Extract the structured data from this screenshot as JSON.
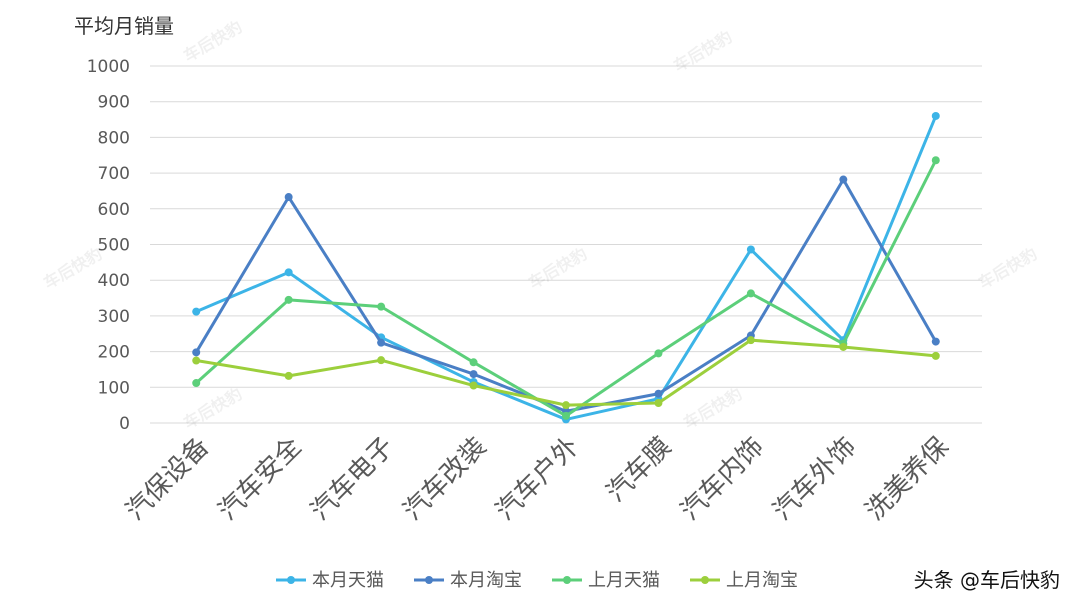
{
  "chart_data": {
    "type": "line",
    "ylabel": "平均月销量",
    "ylim": [
      0,
      1000
    ],
    "yticks": [
      0,
      100,
      200,
      300,
      400,
      500,
      600,
      700,
      800,
      900,
      1000
    ],
    "grid": true,
    "legend_position": "bottom",
    "categories": [
      "汽保设备",
      "汽车安全",
      "汽车电子",
      "汽车改装",
      "汽车户外",
      "汽车膜",
      "汽车内饰",
      "汽车外饰",
      "洗美养保"
    ],
    "series": [
      {
        "name": "本月天猫",
        "color": "#3cb4e7",
        "values": [
          312,
          422,
          240,
          115,
          10,
          68,
          486,
          232,
          860
        ]
      },
      {
        "name": "本月淘宝",
        "color": "#4a7fc5",
        "values": [
          198,
          633,
          225,
          137,
          33,
          82,
          245,
          682,
          228
        ]
      },
      {
        "name": "上月天猫",
        "color": "#5ccf7a",
        "values": [
          112,
          345,
          326,
          170,
          20,
          195,
          363,
          222,
          736
        ]
      },
      {
        "name": "上月淘宝",
        "color": "#9ccf3c",
        "values": [
          175,
          132,
          176,
          105,
          50,
          56,
          232,
          213,
          188
        ]
      }
    ]
  },
  "watermark": {
    "text": "车后快豹"
  },
  "credit": "头条 @车后快豹"
}
